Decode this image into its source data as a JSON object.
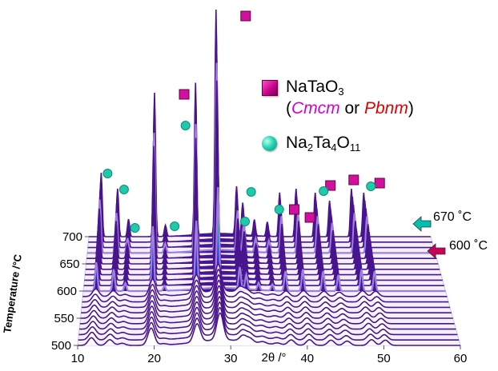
{
  "chart_data": {
    "type": "area",
    "view": "3D waterfall of diffraction patterns",
    "xlabel": "2θ /°",
    "ylabel": "Temperature /°C",
    "x_ticks": [
      "10",
      "20",
      "30",
      "40",
      "50",
      "60"
    ],
    "y_ticks": [
      "500",
      "550",
      "600",
      "650",
      "700"
    ],
    "xlim": [
      10,
      60
    ],
    "ylim": [
      500,
      700
    ],
    "temperature_step": 10,
    "highlighted_traces": [
      {
        "temperature": 600,
        "label": "600 ˚C",
        "arrow_color": "#c8005a"
      },
      {
        "temperature": 670,
        "label": "670 ˚C",
        "arrow_color": "#00c0b0"
      }
    ],
    "high_temp_peaks_2theta": [
      11.8,
      14.2,
      15.8,
      19.6,
      21.2,
      25.6,
      28.6,
      31.6,
      32.5,
      34.2,
      36.1,
      37.9,
      40.3,
      43.1,
      45.2,
      48.4,
      50.2
    ],
    "legend": {
      "square": {
        "formula": "NaTaO",
        "subscript": "3",
        "line2_open": "(",
        "cmcm": "Cmcm",
        "or": " or ",
        "pbnm": "Pbnm",
        "line2_close": ")"
      },
      "dot": {
        "na": "Na",
        "na_sub": "2",
        "ta": "Ta",
        "ta_sub": "4",
        "o": "O",
        "o_sub": "11"
      }
    },
    "colors": {
      "trace": "#4a148c",
      "trace_light": "#9d7fe0",
      "square_marker": "#d1109f",
      "dot_marker": "#20c9aa",
      "cmcm": "#d400d4",
      "pbnm": "#e00000"
    },
    "grid": false
  }
}
